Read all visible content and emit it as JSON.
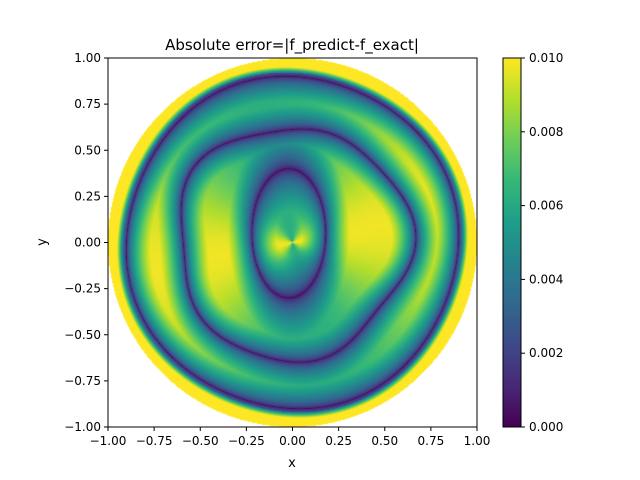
{
  "chart_data": {
    "type": "heatmap",
    "title": "Absolute error=|f_predict-f_exact|",
    "xlabel": "x",
    "ylabel": "y",
    "xlim": [
      -1.0,
      1.0
    ],
    "ylim": [
      -1.0,
      1.0
    ],
    "xticks": [
      "−1.00",
      "−0.75",
      "−0.50",
      "−0.25",
      "0.00",
      "0.25",
      "0.50",
      "0.75",
      "1.00"
    ],
    "yticks": [
      "−1.00",
      "−0.75",
      "−0.50",
      "−0.25",
      "0.00",
      "0.25",
      "0.50",
      "0.75",
      "1.00"
    ],
    "xtick_values": [
      -1.0,
      -0.75,
      -0.5,
      -0.25,
      0.0,
      0.25,
      0.5,
      0.75,
      1.0
    ],
    "ytick_values": [
      -1.0,
      -0.75,
      -0.5,
      -0.25,
      0.0,
      0.25,
      0.5,
      0.75,
      1.0
    ],
    "domain": "disk of radius 1 centered at (0,0); outside the disk is blank",
    "colormap": "viridis",
    "colorbar": {
      "range": [
        0.0,
        0.01
      ],
      "ticks": [
        "0.000",
        "0.002",
        "0.004",
        "0.006",
        "0.008",
        "0.010"
      ],
      "tick_values": [
        0.0,
        0.002,
        0.004,
        0.006,
        0.008,
        0.01
      ]
    },
    "field_features": {
      "center_value": 0.0098,
      "zero_error_contours": [
        {
          "shape": "tilted ellipse",
          "center": [
            -0.02,
            0.05
          ],
          "radius_x": 0.2,
          "radius_y": 0.35
        },
        {
          "shape": "ring",
          "mean_radius": 0.63
        },
        {
          "shape": "ring",
          "mean_radius": 0.9
        }
      ],
      "boundary_error": 0.01,
      "grid": false
    }
  }
}
